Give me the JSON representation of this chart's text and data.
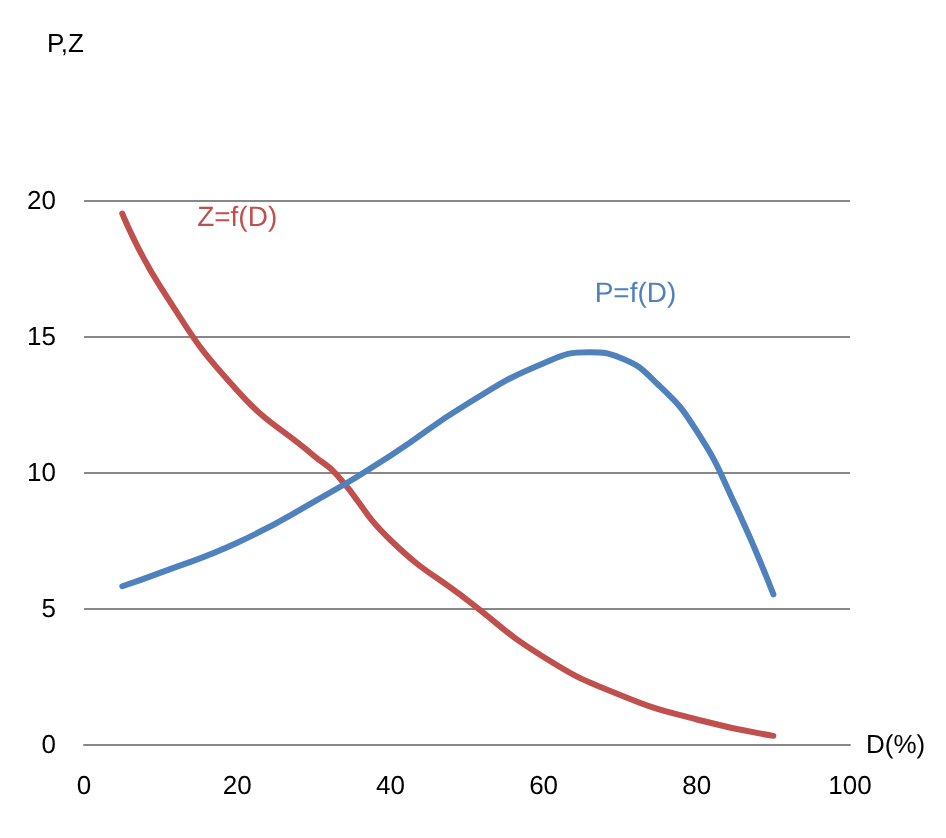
{
  "chart_data": {
    "type": "line",
    "xlabel": "D(%)",
    "ylabel": "P,Z",
    "x": [
      5,
      10,
      20,
      30,
      40,
      50,
      60,
      66,
      70,
      75,
      80,
      85,
      90
    ],
    "series": [
      {
        "color": "#c0504d",
        "x": [
          5,
          10,
          20,
          30,
          33,
          40,
          50,
          60,
          70,
          80,
          90
        ],
        "values": [
          19.5,
          16.8,
          13,
          10.6,
          9.9,
          7.5,
          5.3,
          3.2,
          1.8,
          0.9,
          0.3
        ]
      },
      {
        "color": "#4f81bd",
        "values": [
          5.8,
          6.3,
          7.4,
          8.9,
          10.6,
          12.5,
          14.0,
          14.4,
          14.2,
          13.2,
          11.5,
          8.8,
          5.5
        ]
      }
    ],
    "annotations": [
      "Z=f(D)",
      "P=f(D)"
    ],
    "xlim": [
      0,
      100
    ],
    "xticks": [
      0,
      20,
      40,
      60,
      80,
      100
    ],
    "ylim": [
      0,
      20
    ],
    "yticks": [
      0,
      5,
      10,
      15,
      20
    ],
    "grid": "y",
    "marker": "none",
    "line_style": "solid"
  }
}
